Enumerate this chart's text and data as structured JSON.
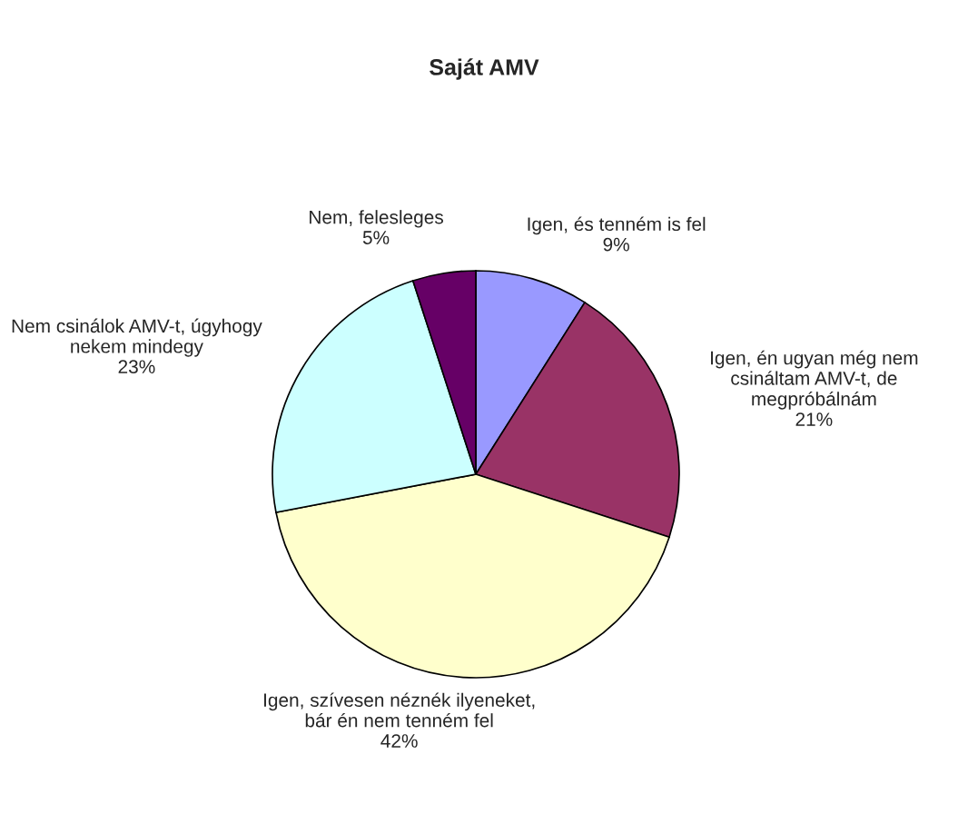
{
  "chart_data": {
    "type": "pie",
    "title": "Saját AMV",
    "categories": [
      "Igen, és tenném is fel",
      "Igen, én ugyan még nem\ncsináltam AMV-t, de\nmegpróbálnám",
      "Igen, szívesen néznék ilyeneket,\nbár én nem tenném fel",
      "Nem csinálok AMV-t, úgyhogy\nnekem mindegy",
      "Nem, felesleges"
    ],
    "values": [
      9,
      21,
      42,
      23,
      5
    ],
    "value_labels": [
      "9%",
      "21%",
      "42%",
      "23%",
      "5%"
    ],
    "colors": [
      "#9999ff",
      "#993366",
      "#ffffcc",
      "#ccffff",
      "#660066"
    ],
    "legend": false
  }
}
